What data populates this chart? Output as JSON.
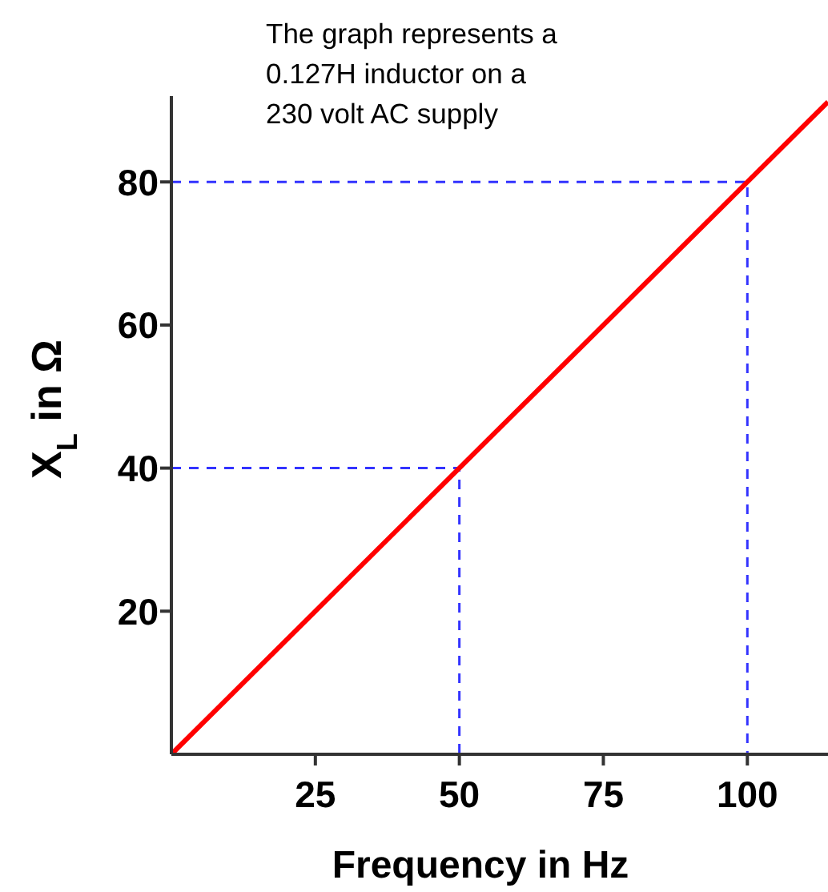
{
  "chart_data": {
    "type": "line",
    "x": [
      0,
      114
    ],
    "xlim": [
      0,
      114
    ],
    "xticks": [
      25,
      50,
      75,
      100
    ],
    "ylim": [
      0,
      92
    ],
    "yticks": [
      20,
      40,
      60,
      80
    ],
    "xlabel": "Frequency in Hz",
    "ylabel": "X$_{L}$ in Ω",
    "annotations": [
      "The graph represents a 0.127H inductor on a 230 volt AC supply"
    ],
    "grid": false,
    "marker": "none",
    "series": [
      {
        "color": "#ff0000",
        "values": [
          0,
          91.2
        ],
        "line_style": "solid"
      },
      {
        "color": "#3333ff",
        "x": [
          0,
          100,
          100
        ],
        "values": [
          80,
          80,
          0
        ],
        "line_style": "dashed"
      },
      {
        "color": "#3333ff",
        "x": [
          0,
          50,
          50
        ],
        "values": [
          40,
          40,
          0
        ],
        "line_style": "dashed"
      }
    ]
  }
}
